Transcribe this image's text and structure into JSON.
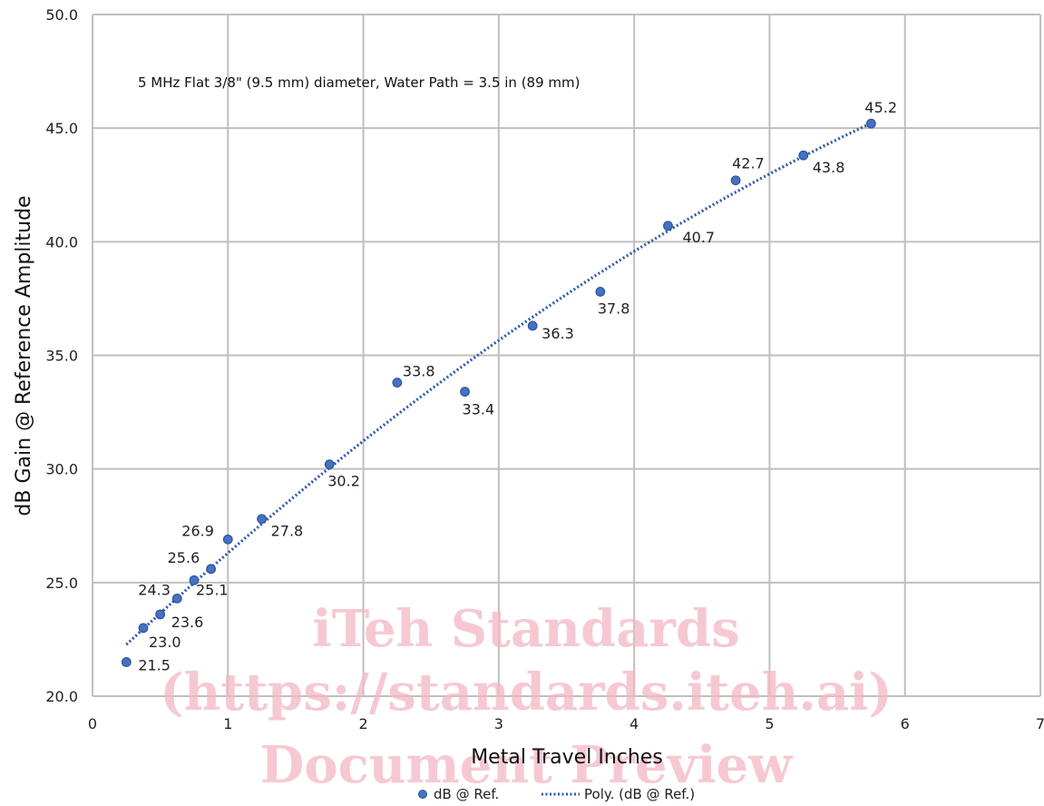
{
  "chart_data": {
    "type": "scatter",
    "title": "",
    "annotation": "5 MHz Flat 3/8\" (9.5 mm) diameter, Water Path = 3.5 in (89 mm)",
    "xlabel": "Metal Travel Inches",
    "ylabel": "dB Gain @ Reference Amplitude",
    "xlim": [
      0,
      7
    ],
    "ylim": [
      20,
      50
    ],
    "x_ticks": [
      "0",
      "1",
      "2",
      "3",
      "4",
      "5",
      "6",
      "7"
    ],
    "y_ticks": [
      "20.0",
      "25.0",
      "30.0",
      "35.0",
      "40.0",
      "45.0",
      "50.0"
    ],
    "grid": true,
    "legend_position": "bottom",
    "series": [
      {
        "name": "dB @ Ref.",
        "color": "#4472c4",
        "points": [
          {
            "x": 0.25,
            "y": 21.5,
            "label": "21.5"
          },
          {
            "x": 0.375,
            "y": 23.0,
            "label": "23.0"
          },
          {
            "x": 0.5,
            "y": 23.6,
            "label": "23.6"
          },
          {
            "x": 0.625,
            "y": 24.3,
            "label": "24.3"
          },
          {
            "x": 0.75,
            "y": 25.1,
            "label": "25.1"
          },
          {
            "x": 0.875,
            "y": 25.6,
            "label": "25.6"
          },
          {
            "x": 1.0,
            "y": 26.9,
            "label": "26.9"
          },
          {
            "x": 1.25,
            "y": 27.8,
            "label": "27.8"
          },
          {
            "x": 1.75,
            "y": 30.2,
            "label": "30.2"
          },
          {
            "x": 2.25,
            "y": 33.8,
            "label": "33.8"
          },
          {
            "x": 2.75,
            "y": 33.4,
            "label": "33.4"
          },
          {
            "x": 3.25,
            "y": 36.3,
            "label": "36.3"
          },
          {
            "x": 3.75,
            "y": 37.8,
            "label": "37.8"
          },
          {
            "x": 4.25,
            "y": 40.7,
            "label": "40.7"
          },
          {
            "x": 4.75,
            "y": 42.7,
            "label": "42.7"
          },
          {
            "x": 5.25,
            "y": 43.8,
            "label": "43.8"
          },
          {
            "x": 5.75,
            "y": 45.2,
            "label": "45.2"
          }
        ]
      }
    ],
    "trendline": {
      "name": "Poly. (dB @ Ref.)",
      "type": "polynomial",
      "style": "dotted",
      "color": "#2e5aa8"
    }
  },
  "watermark": {
    "line1": "iTeh Standards",
    "line2": "(https://standards.iteh.ai)",
    "line3": "Document Preview",
    "color": "#f4b8c4"
  }
}
